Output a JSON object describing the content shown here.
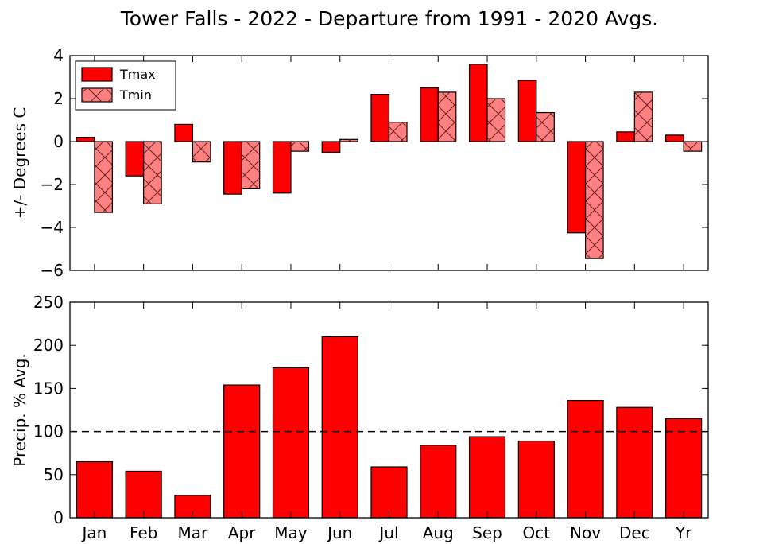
{
  "figure": {
    "title": "Tower Falls - 2022 - Departure from 1991 - 2020 Avgs."
  },
  "chart_data": [
    {
      "type": "bar",
      "ylabel": "+/- Degrees C",
      "ylim": [
        -6,
        4
      ],
      "yticks": [
        4,
        2,
        0,
        -2,
        -4,
        -6
      ],
      "yticklabels": [
        "4",
        "2",
        "0",
        "−2",
        "−4",
        "−6"
      ],
      "categories": [
        "Jan",
        "Feb",
        "Mar",
        "Apr",
        "May",
        "Jun",
        "Jul",
        "Aug",
        "Sep",
        "Oct",
        "Nov",
        "Dec",
        "Yr"
      ],
      "legend_position": "top-left",
      "series": [
        {
          "name": "Tmax",
          "color": "#ff0000",
          "hatch": false,
          "values": [
            0.2,
            -1.6,
            0.8,
            -2.45,
            -2.4,
            -0.5,
            2.2,
            2.5,
            3.6,
            2.85,
            -4.25,
            0.45,
            0.3
          ]
        },
        {
          "name": "Tmin",
          "color": "#ff8080",
          "hatch": true,
          "values": [
            -3.3,
            -2.9,
            -0.95,
            -2.2,
            -0.45,
            0.1,
            0.9,
            2.3,
            2.0,
            1.35,
            -5.45,
            2.3,
            -0.45
          ]
        }
      ]
    },
    {
      "type": "bar",
      "ylabel": "Precip. % Avg.",
      "ylim": [
        0,
        250
      ],
      "yticks": [
        0,
        50,
        100,
        150,
        200,
        250
      ],
      "yticklabels": [
        "0",
        "50",
        "100",
        "150",
        "200",
        "250"
      ],
      "categories": [
        "Jan",
        "Feb",
        "Mar",
        "Apr",
        "May",
        "Jun",
        "Jul",
        "Aug",
        "Sep",
        "Oct",
        "Nov",
        "Dec",
        "Yr"
      ],
      "reference_line": 100,
      "series": [
        {
          "color": "#ff0000",
          "values": [
            65,
            54,
            26,
            154,
            174,
            210,
            59,
            84,
            94,
            89,
            136,
            128,
            115
          ]
        }
      ]
    }
  ]
}
